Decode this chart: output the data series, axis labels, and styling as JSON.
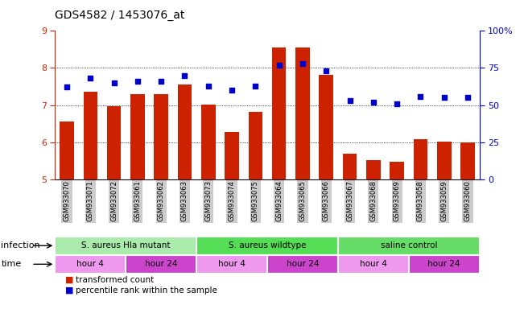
{
  "title": "GDS4582 / 1453076_at",
  "samples": [
    "GSM933070",
    "GSM933071",
    "GSM933072",
    "GSM933061",
    "GSM933062",
    "GSM933063",
    "GSM933073",
    "GSM933074",
    "GSM933075",
    "GSM933064",
    "GSM933065",
    "GSM933066",
    "GSM933067",
    "GSM933068",
    "GSM933069",
    "GSM933058",
    "GSM933059",
    "GSM933060"
  ],
  "bar_values": [
    6.55,
    7.35,
    6.97,
    7.3,
    7.3,
    7.55,
    7.02,
    6.28,
    6.82,
    8.55,
    8.55,
    7.82,
    5.68,
    5.52,
    5.48,
    6.08,
    6.02,
    6.0
  ],
  "dot_values_pct": [
    62,
    68,
    65,
    66,
    66,
    70,
    63,
    60,
    63,
    77,
    78,
    73,
    53,
    52,
    51,
    56,
    55,
    55
  ],
  "ylim_left": [
    5,
    9
  ],
  "ylim_right": [
    0,
    100
  ],
  "yticks_left": [
    5,
    6,
    7,
    8,
    9
  ],
  "yticks_right": [
    0,
    25,
    50,
    75,
    100
  ],
  "ytick_labels_right": [
    "0",
    "25",
    "50",
    "75",
    "100%"
  ],
  "bar_color": "#cc2200",
  "dot_color": "#0000cc",
  "bar_width": 0.6,
  "infection_groups": [
    {
      "label": "S. aureus Hla mutant",
      "start": 0,
      "end": 6,
      "color": "#aaeaaa"
    },
    {
      "label": "S. aureus wildtype",
      "start": 6,
      "end": 12,
      "color": "#55dd55"
    },
    {
      "label": "saline control",
      "start": 12,
      "end": 18,
      "color": "#66dd66"
    }
  ],
  "time_groups": [
    {
      "label": "hour 4",
      "start": 0,
      "end": 3,
      "color": "#ee99ee"
    },
    {
      "label": "hour 24",
      "start": 3,
      "end": 6,
      "color": "#cc44cc"
    },
    {
      "label": "hour 4",
      "start": 6,
      "end": 9,
      "color": "#ee99ee"
    },
    {
      "label": "hour 24",
      "start": 9,
      "end": 12,
      "color": "#cc44cc"
    },
    {
      "label": "hour 4",
      "start": 12,
      "end": 15,
      "color": "#ee99ee"
    },
    {
      "label": "hour 24",
      "start": 15,
      "end": 18,
      "color": "#cc44cc"
    }
  ],
  "left_axis_color": "#cc2200",
  "right_axis_color": "#0000cc",
  "tick_bg_color": "#cccccc"
}
